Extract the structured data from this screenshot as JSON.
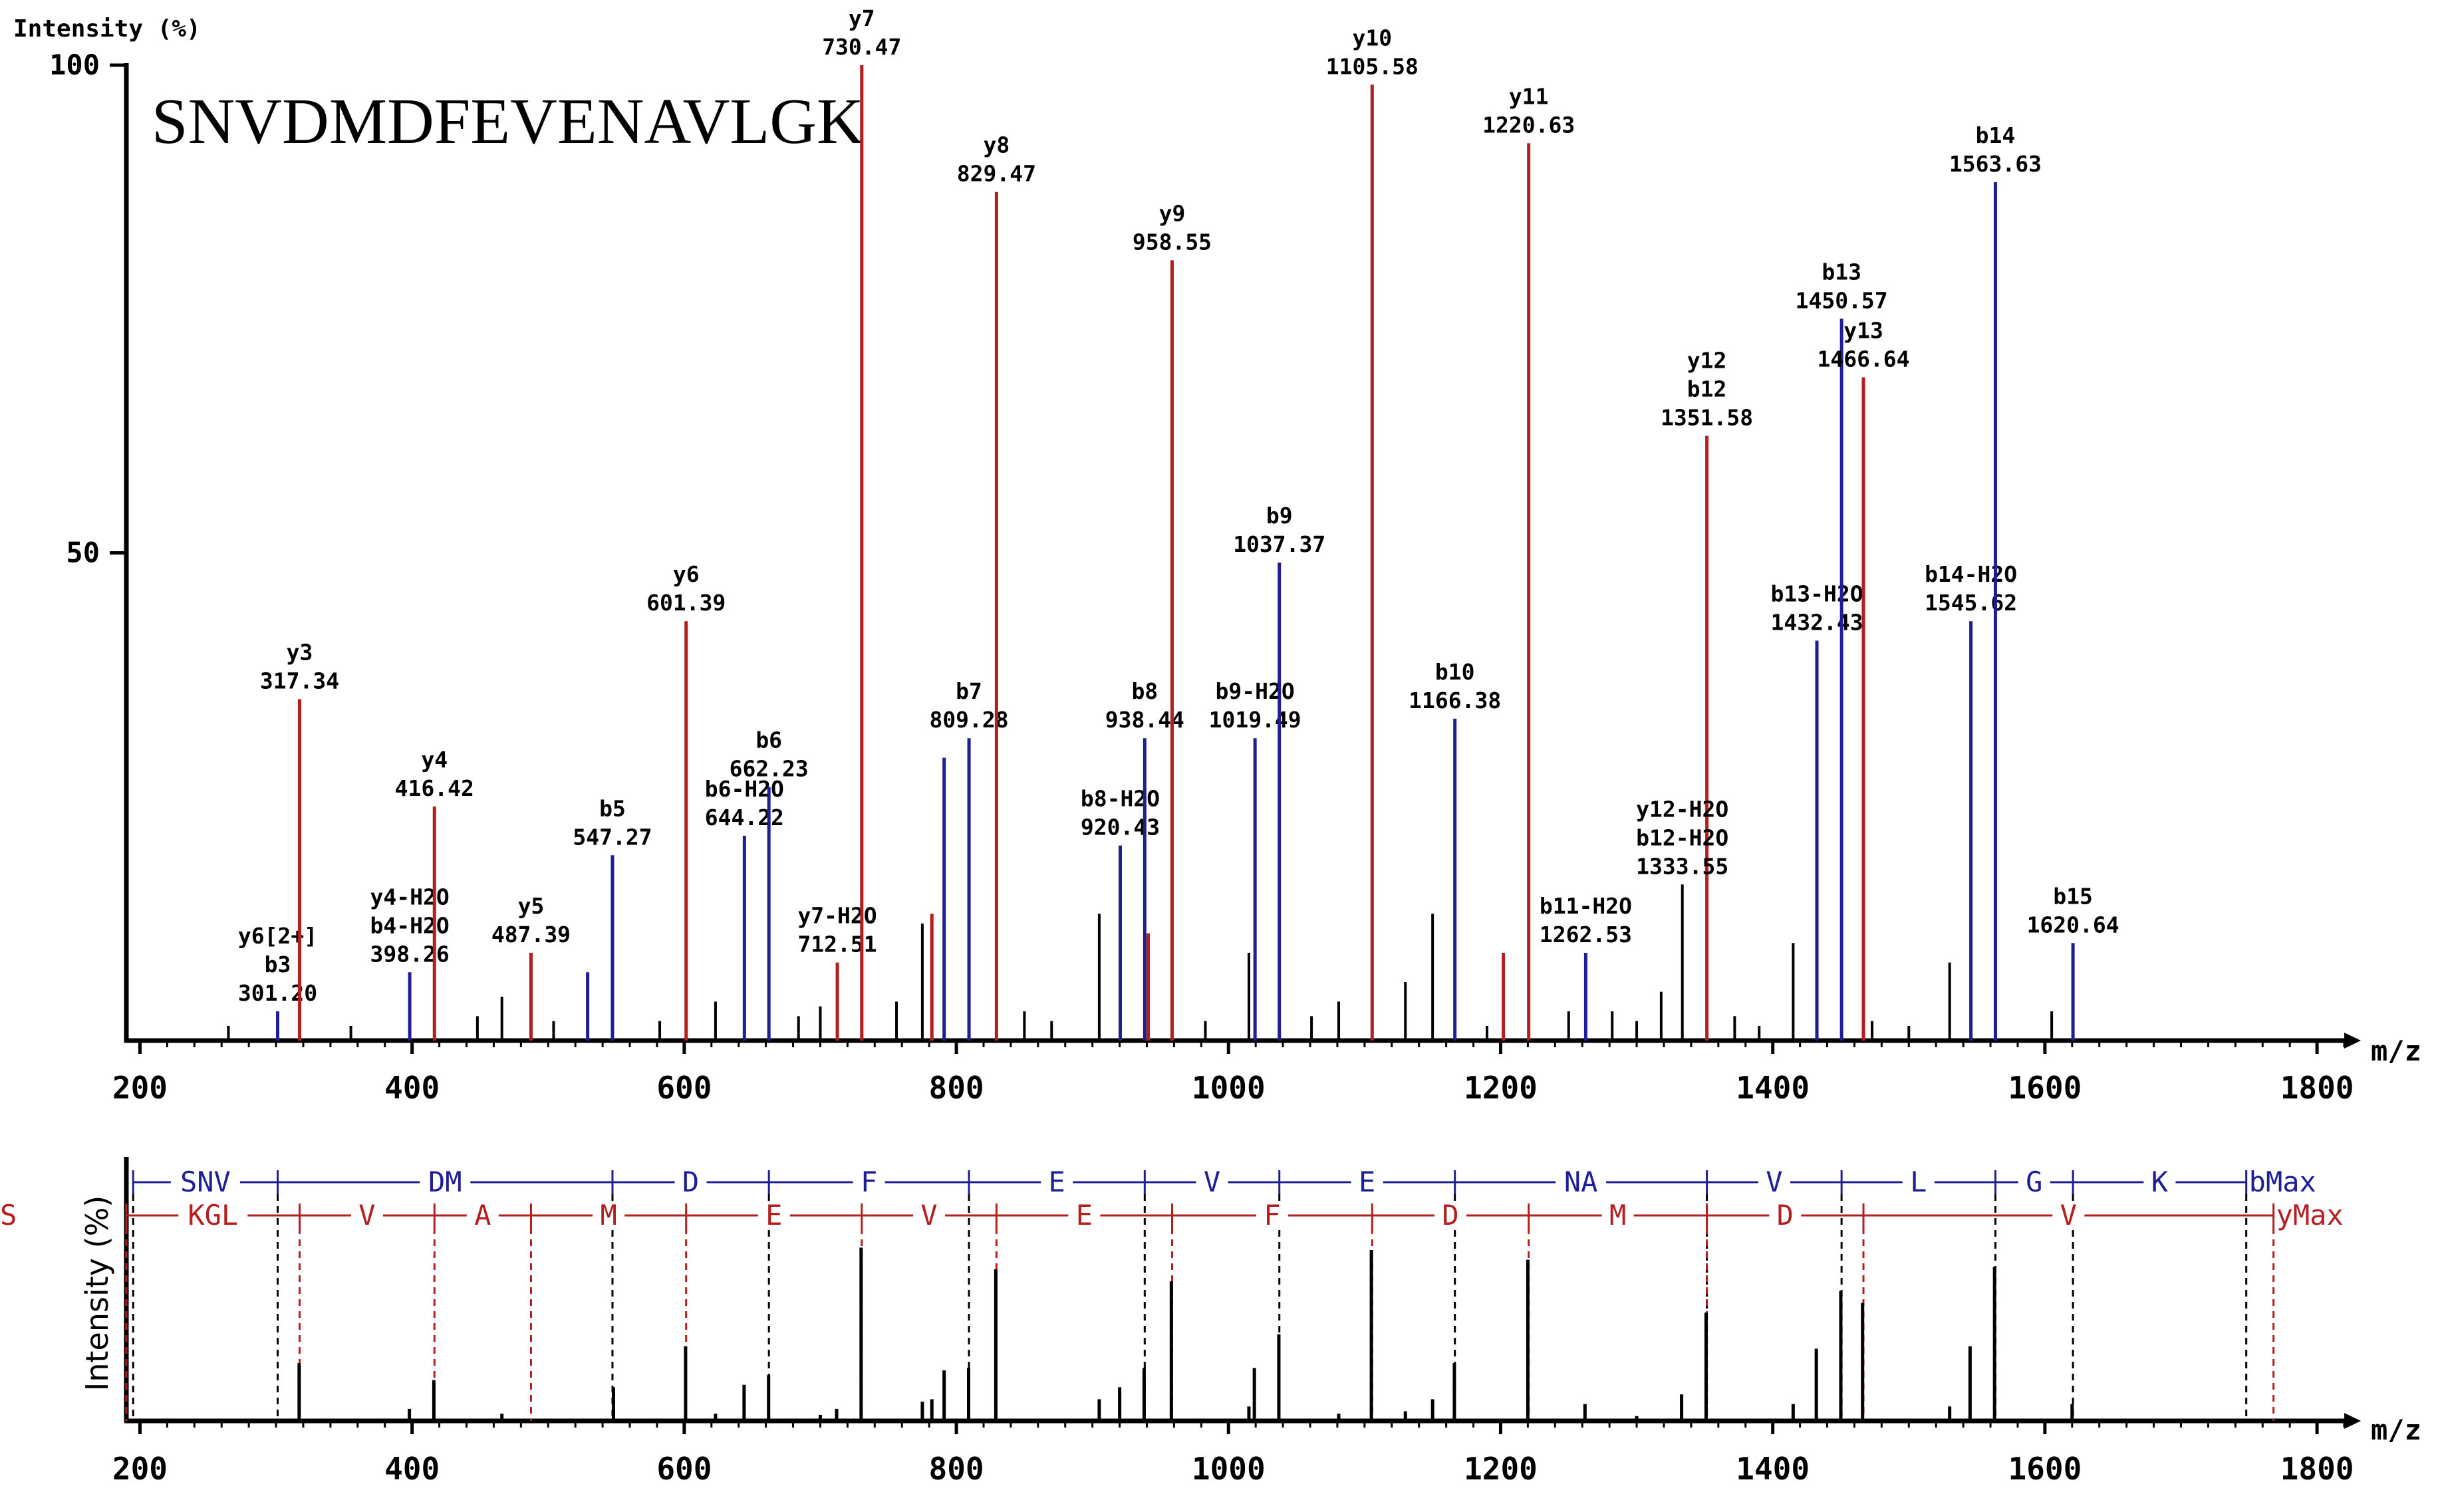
{
  "colors": {
    "y_ion": "#b41e1e",
    "b_ion": "#1e1e96",
    "noise": "#000000",
    "axis": "#000000"
  },
  "chart_data": [
    {
      "type": "bar",
      "name": "annotated-spectrum",
      "title": "SNVDMDFEVENAVLGK",
      "ylabel": "Intensity (%)",
      "xlabel": "m/z",
      "xlim": [
        190,
        1820
      ],
      "ylim": [
        0,
        100
      ],
      "xticks": [
        200,
        400,
        600,
        800,
        1000,
        1200,
        1400,
        1600,
        1800
      ],
      "xtick_labels": [
        "200",
        "400",
        "600",
        "800",
        "1000",
        "1200",
        "1400",
        "1600",
        "1800"
      ],
      "yticks": [
        50,
        100
      ],
      "ytick_labels": [
        "50",
        "100"
      ],
      "peaks": [
        {
          "mz": 301.2,
          "intensity": 3,
          "series": "b",
          "label": [
            "y6[2+]",
            "b3",
            "301.20"
          ]
        },
        {
          "mz": 317.34,
          "intensity": 35,
          "series": "y",
          "label": [
            "y3",
            "317.34"
          ]
        },
        {
          "mz": 398.26,
          "intensity": 7,
          "series": "b",
          "label": [
            "y4-H2O",
            "b4-H2O",
            "398.26"
          ]
        },
        {
          "mz": 416.42,
          "intensity": 24,
          "series": "y",
          "label": [
            "y4",
            "416.42"
          ]
        },
        {
          "mz": 487.39,
          "intensity": 9,
          "series": "y",
          "label": [
            "y5",
            "487.39"
          ]
        },
        {
          "mz": 529.0,
          "intensity": 7,
          "series": "b",
          "label": []
        },
        {
          "mz": 547.27,
          "intensity": 19,
          "series": "b",
          "label": [
            "b5",
            "547.27"
          ]
        },
        {
          "mz": 601.39,
          "intensity": 43,
          "series": "y",
          "label": [
            "y6",
            "601.39"
          ]
        },
        {
          "mz": 644.22,
          "intensity": 21,
          "series": "b",
          "label": [
            "b6-H2O",
            "644.22"
          ]
        },
        {
          "mz": 662.23,
          "intensity": 26,
          "series": "b",
          "label": [
            "b6",
            "662.23"
          ]
        },
        {
          "mz": 712.51,
          "intensity": 8,
          "series": "y",
          "label": [
            "y7-H2O",
            "712.51"
          ]
        },
        {
          "mz": 730.47,
          "intensity": 100,
          "series": "y",
          "label": [
            "y7",
            "730.47"
          ]
        },
        {
          "mz": 782.0,
          "intensity": 13,
          "series": "y",
          "label": []
        },
        {
          "mz": 791.0,
          "intensity": 29,
          "series": "b",
          "label": []
        },
        {
          "mz": 809.28,
          "intensity": 31,
          "series": "b",
          "label": [
            "b7",
            "809.28"
          ]
        },
        {
          "mz": 829.47,
          "intensity": 87,
          "series": "y",
          "label": [
            "y8",
            "829.47"
          ]
        },
        {
          "mz": 920.43,
          "intensity": 20,
          "series": "b",
          "label": [
            "b8-H2O",
            "920.43"
          ]
        },
        {
          "mz": 938.44,
          "intensity": 31,
          "series": "b",
          "label": [
            "b8",
            "938.44"
          ]
        },
        {
          "mz": 941.0,
          "intensity": 11,
          "series": "y",
          "label": []
        },
        {
          "mz": 958.55,
          "intensity": 80,
          "series": "y",
          "label": [
            "y9",
            "958.55"
          ]
        },
        {
          "mz": 1019.49,
          "intensity": 31,
          "series": "b",
          "label": [
            "b9-H2O",
            "1019.49"
          ]
        },
        {
          "mz": 1037.37,
          "intensity": 49,
          "series": "b",
          "label": [
            "b9",
            "1037.37"
          ]
        },
        {
          "mz": 1105.58,
          "intensity": 98,
          "series": "y",
          "label": [
            "y10",
            "1105.58"
          ]
        },
        {
          "mz": 1166.38,
          "intensity": 33,
          "series": "b",
          "label": [
            "b10",
            "1166.38"
          ]
        },
        {
          "mz": 1202.0,
          "intensity": 9,
          "series": "y",
          "label": []
        },
        {
          "mz": 1220.63,
          "intensity": 92,
          "series": "y",
          "label": [
            "y11",
            "1220.63"
          ]
        },
        {
          "mz": 1262.53,
          "intensity": 9,
          "series": "b",
          "label": [
            "b11-H2O",
            "1262.53"
          ]
        },
        {
          "mz": 1351.58,
          "intensity": 62,
          "series": "y",
          "label": [
            "y12",
            "b12",
            "1351.58"
          ]
        },
        {
          "mz": 1432.43,
          "intensity": 41,
          "series": "b",
          "label": [
            "b13-H2O",
            "1432.43"
          ]
        },
        {
          "mz": 1450.57,
          "intensity": 74,
          "series": "b",
          "label": [
            "b13",
            "1450.57"
          ]
        },
        {
          "mz": 1466.64,
          "intensity": 68,
          "series": "y",
          "label": [
            "y13",
            "1466.64"
          ]
        },
        {
          "mz": 1545.62,
          "intensity": 43,
          "series": "b",
          "label": [
            "b14-H2O",
            "1545.62"
          ]
        },
        {
          "mz": 1563.63,
          "intensity": 88,
          "series": "b",
          "label": [
            "b14",
            "1563.63"
          ]
        },
        {
          "mz": 1620.64,
          "intensity": 10,
          "series": "b",
          "label": [
            "b15",
            "1620.64"
          ]
        },
        {
          "mz": 1333.55,
          "intensity": 16,
          "series": "noise",
          "label": [
            "y12-H2O",
            "b12-H2O",
            "1333.55"
          ]
        },
        {
          "mz": 905,
          "intensity": 13,
          "series": "noise",
          "label": []
        },
        {
          "mz": 775,
          "intensity": 12,
          "series": "noise",
          "label": []
        },
        {
          "mz": 1015,
          "intensity": 9,
          "series": "noise",
          "label": []
        },
        {
          "mz": 1150,
          "intensity": 13,
          "series": "noise",
          "label": []
        },
        {
          "mz": 1415,
          "intensity": 10,
          "series": "noise",
          "label": []
        },
        {
          "mz": 1530,
          "intensity": 8,
          "series": "noise",
          "label": []
        },
        {
          "mz": 1130,
          "intensity": 6,
          "series": "noise",
          "label": []
        },
        {
          "mz": 1282,
          "intensity": 3,
          "series": "noise",
          "label": []
        },
        {
          "mz": 1318,
          "intensity": 5,
          "series": "noise",
          "label": []
        },
        {
          "mz": 1605,
          "intensity": 3,
          "series": "noise",
          "label": []
        },
        {
          "mz": 466,
          "intensity": 4.5,
          "series": "noise",
          "label": []
        },
        {
          "mz": 448,
          "intensity": 2.5,
          "series": "noise",
          "label": []
        },
        {
          "mz": 623,
          "intensity": 4,
          "series": "noise",
          "label": []
        },
        {
          "mz": 700,
          "intensity": 3.5,
          "series": "noise",
          "label": []
        },
        {
          "mz": 756,
          "intensity": 4,
          "series": "noise",
          "label": []
        },
        {
          "mz": 850,
          "intensity": 3,
          "series": "noise",
          "label": []
        },
        {
          "mz": 1081,
          "intensity": 4,
          "series": "noise",
          "label": []
        },
        {
          "mz": 1250,
          "intensity": 3,
          "series": "noise",
          "label": []
        },
        {
          "mz": 1372,
          "intensity": 2.5,
          "series": "noise",
          "label": []
        },
        {
          "mz": 1473,
          "intensity": 2,
          "series": "noise",
          "label": []
        },
        {
          "mz": 265,
          "intensity": 1.5,
          "series": "noise",
          "label": []
        },
        {
          "mz": 355,
          "intensity": 1.5,
          "series": "noise",
          "label": []
        },
        {
          "mz": 504,
          "intensity": 2,
          "series": "noise",
          "label": []
        },
        {
          "mz": 582,
          "intensity": 2,
          "series": "noise",
          "label": []
        },
        {
          "mz": 684,
          "intensity": 2.5,
          "series": "noise",
          "label": []
        },
        {
          "mz": 870,
          "intensity": 2,
          "series": "noise",
          "label": []
        },
        {
          "mz": 983,
          "intensity": 2,
          "series": "noise",
          "label": []
        },
        {
          "mz": 1061,
          "intensity": 2.5,
          "series": "noise",
          "label": []
        },
        {
          "mz": 1190,
          "intensity": 1.5,
          "series": "noise",
          "label": []
        },
        {
          "mz": 1300,
          "intensity": 2,
          "series": "noise",
          "label": []
        },
        {
          "mz": 1390,
          "intensity": 1.5,
          "series": "noise",
          "label": []
        },
        {
          "mz": 1500,
          "intensity": 1.5,
          "series": "noise",
          "label": []
        }
      ]
    },
    {
      "type": "bar",
      "name": "sequence-ladder",
      "ylabel": "Intensity (%)",
      "xlabel": "m/z",
      "xlim": [
        190,
        1820
      ],
      "ylim": [
        0,
        100
      ],
      "xticks": [
        200,
        400,
        600,
        800,
        1000,
        1200,
        1400,
        1600,
        1800
      ],
      "xtick_labels": [
        "200",
        "400",
        "600",
        "800",
        "1000",
        "1200",
        "1400",
        "1600",
        "1800"
      ],
      "b_boundaries": [
        195,
        301.2,
        547.27,
        662.23,
        809.28,
        938.44,
        1037.37,
        1166.38,
        1351.58,
        1450.57,
        1563.63,
        1620.64,
        1748
      ],
      "b_labels": [
        "SNV",
        "DM",
        "D",
        "F",
        "E",
        "V",
        "E",
        "NA",
        "V",
        "L",
        "G",
        "K"
      ],
      "b_end_label": "bMax",
      "y_boundaries": [
        190,
        317.34,
        416.42,
        487.39,
        601.39,
        730.47,
        829.47,
        958.55,
        1105.58,
        1220.63,
        1351.58,
        1466.64,
        1768
      ],
      "y_labels": [
        "KGL",
        "V",
        "A",
        "M",
        "E",
        "V",
        "E",
        "F",
        "D",
        "M",
        "D",
        "V",
        "NS"
      ],
      "y_end_label": "yMax",
      "peaks": [
        {
          "mz": 317,
          "intensity": 24
        },
        {
          "mz": 398,
          "intensity": 5
        },
        {
          "mz": 416,
          "intensity": 17
        },
        {
          "mz": 548,
          "intensity": 14
        },
        {
          "mz": 601,
          "intensity": 31
        },
        {
          "mz": 644,
          "intensity": 15
        },
        {
          "mz": 662,
          "intensity": 19
        },
        {
          "mz": 712,
          "intensity": 5
        },
        {
          "mz": 730,
          "intensity": 72
        },
        {
          "mz": 782,
          "intensity": 9
        },
        {
          "mz": 791,
          "intensity": 21
        },
        {
          "mz": 809,
          "intensity": 22
        },
        {
          "mz": 829,
          "intensity": 63
        },
        {
          "mz": 920,
          "intensity": 14
        },
        {
          "mz": 938,
          "intensity": 22
        },
        {
          "mz": 958,
          "intensity": 58
        },
        {
          "mz": 1019,
          "intensity": 22
        },
        {
          "mz": 1037,
          "intensity": 36
        },
        {
          "mz": 1105,
          "intensity": 71
        },
        {
          "mz": 1166,
          "intensity": 24
        },
        {
          "mz": 1220,
          "intensity": 67
        },
        {
          "mz": 1262,
          "intensity": 7
        },
        {
          "mz": 1333,
          "intensity": 11
        },
        {
          "mz": 1351,
          "intensity": 45
        },
        {
          "mz": 1432,
          "intensity": 30
        },
        {
          "mz": 1450,
          "intensity": 54
        },
        {
          "mz": 1466,
          "intensity": 49
        },
        {
          "mz": 1545,
          "intensity": 31
        },
        {
          "mz": 1563,
          "intensity": 64
        },
        {
          "mz": 1620,
          "intensity": 7
        },
        {
          "mz": 905,
          "intensity": 9
        },
        {
          "mz": 775,
          "intensity": 8
        },
        {
          "mz": 1015,
          "intensity": 6
        },
        {
          "mz": 1150,
          "intensity": 9
        },
        {
          "mz": 1415,
          "intensity": 7
        },
        {
          "mz": 1530,
          "intensity": 6
        },
        {
          "mz": 1130,
          "intensity": 4
        },
        {
          "mz": 466,
          "intensity": 3
        },
        {
          "mz": 623,
          "intensity": 3
        },
        {
          "mz": 700,
          "intensity": 2.5
        },
        {
          "mz": 1081,
          "intensity": 3
        },
        {
          "mz": 1300,
          "intensity": 2
        }
      ]
    }
  ]
}
